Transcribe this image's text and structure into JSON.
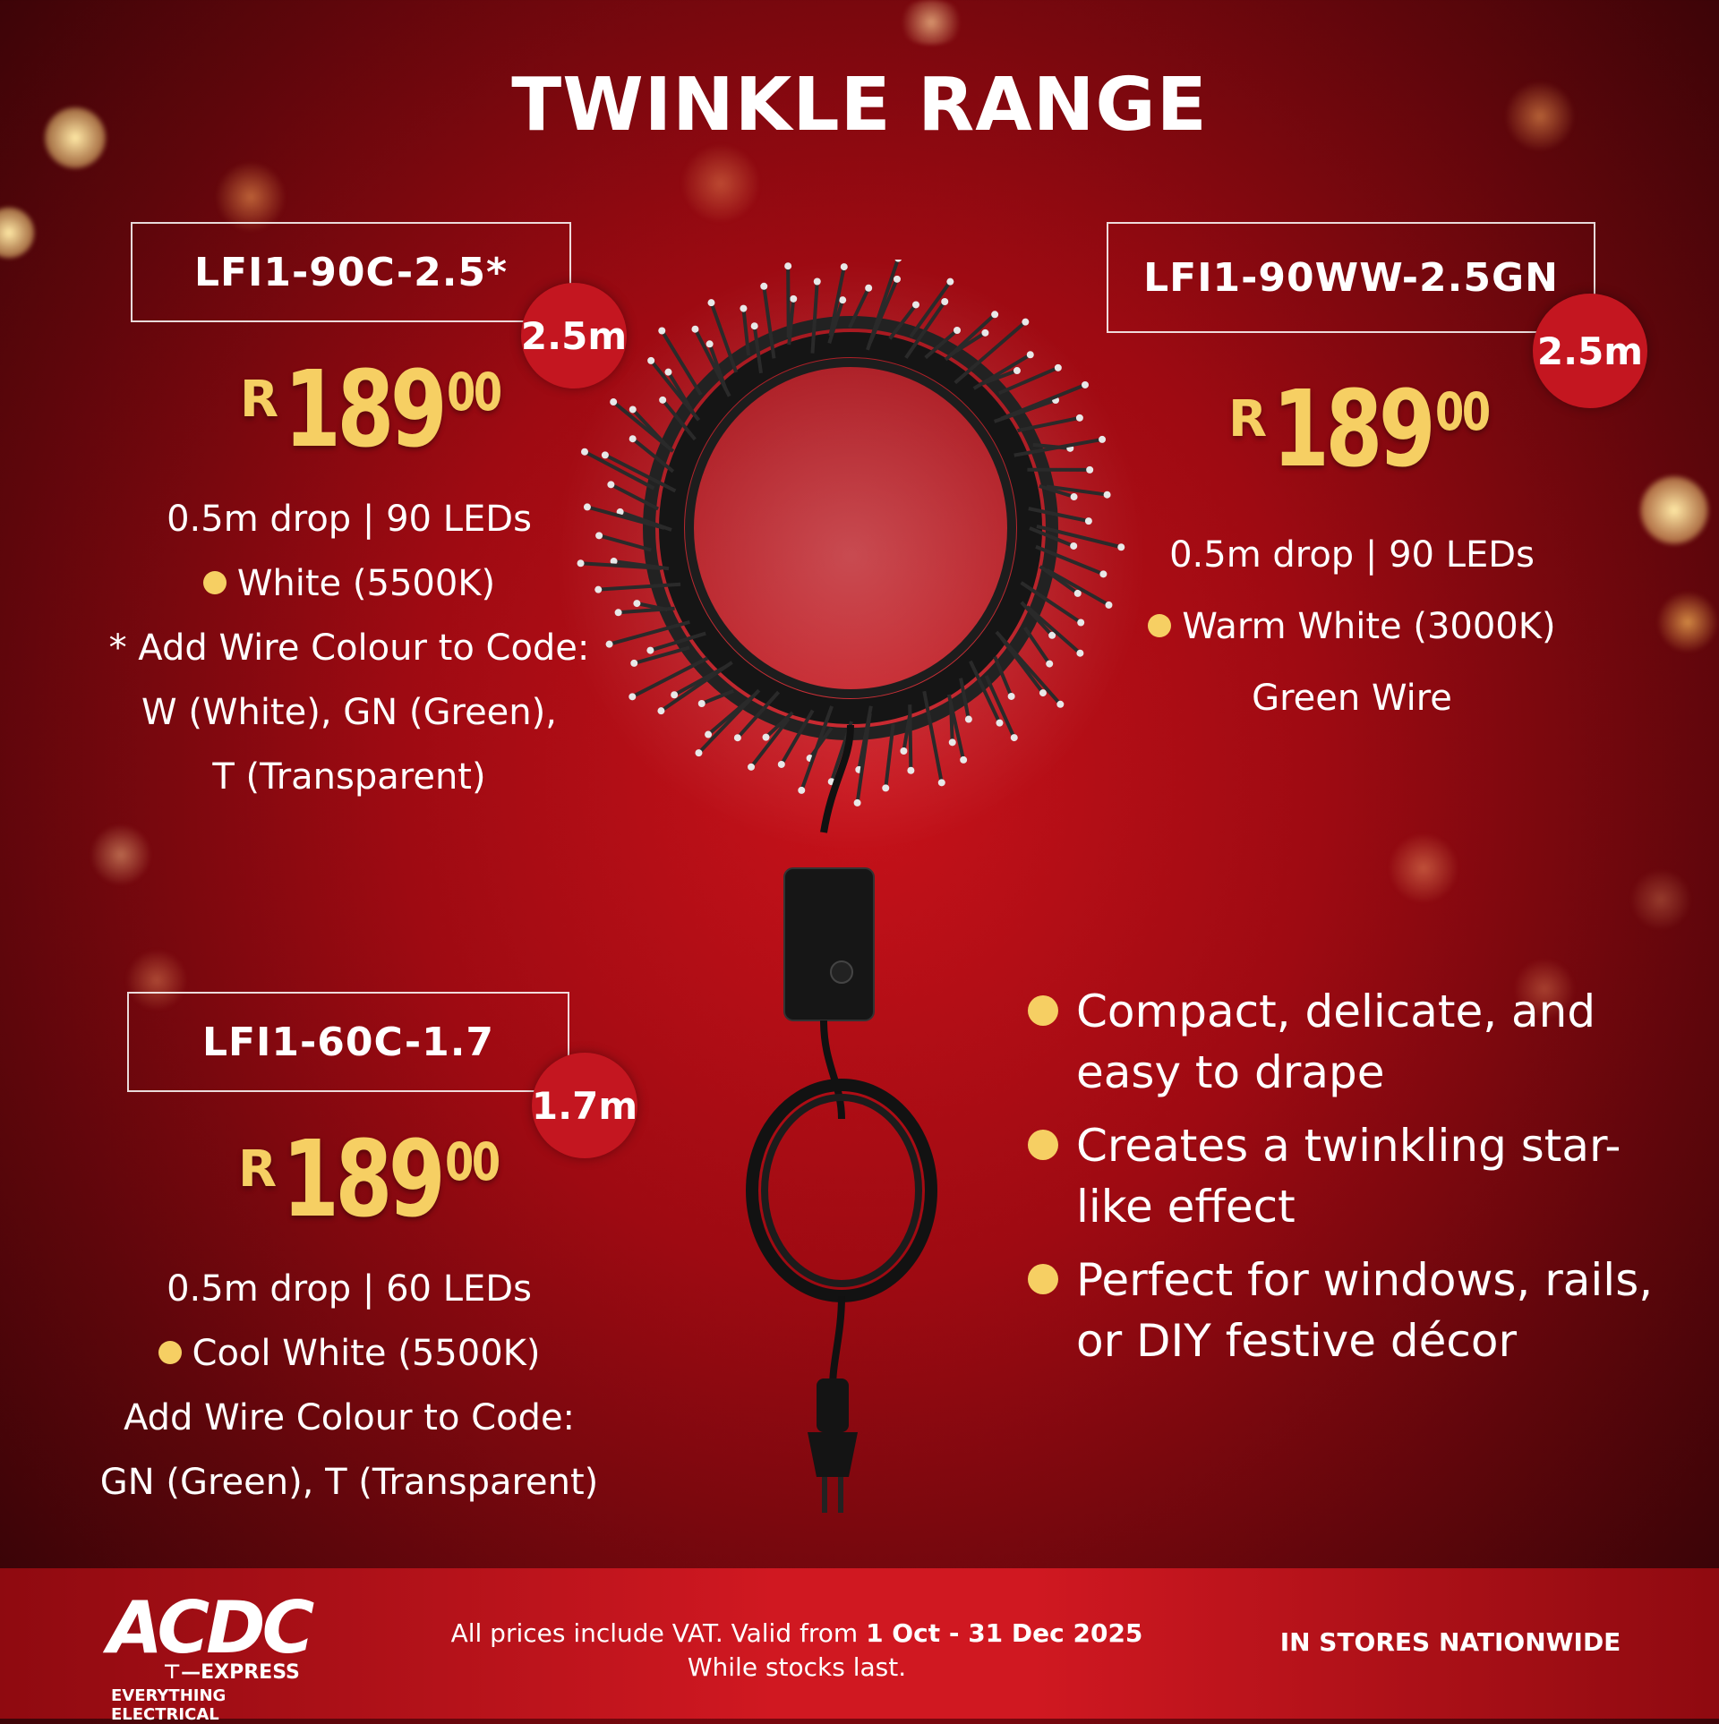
{
  "title": "TWINKLE RANGE",
  "colors": {
    "background": "#9e0a12",
    "price_gold": "#f6cf63",
    "badge_red": "#c41620",
    "footer_red": "#d01821"
  },
  "products": [
    {
      "code": "LFI1-90C-2.5*",
      "length": "2.5m",
      "currency": "R",
      "price_main": "189",
      "price_cents": "00",
      "spec_lines": [
        "0.5m drop | 90 LEDs",
        "White (5500K)",
        "* Add Wire Colour to Code:",
        "W (White), GN (Green),",
        "T (Transparent)"
      ]
    },
    {
      "code": "LFI1-90WW-2.5GN",
      "length": "2.5m",
      "currency": "R",
      "price_main": "189",
      "price_cents": "00",
      "spec_lines": [
        "0.5m drop | 90 LEDs",
        "Warm White (3000K)",
        "Green Wire"
      ]
    },
    {
      "code": "LFI1-60C-1.7",
      "length": "1.7m",
      "currency": "R",
      "price_main": "189",
      "price_cents": "00",
      "spec_lines": [
        "0.5m drop | 60 LEDs",
        "Cool White (5500K)",
        "Add Wire Colour to Code:",
        "GN (Green), T (Transparent)"
      ]
    }
  ],
  "features": [
    "Compact, delicate, and easy to drape",
    "Creates a twinkling star-like effect",
    "Perfect for windows, rails, or DIY festive décor"
  ],
  "product_image": "twinkle-cluster-light-wreath-with-controller-and-plug",
  "footer": {
    "logo_main": "ACDC",
    "logo_sub": "EXPRESS",
    "logo_tagline": "EVERYTHING ELECTRICAL",
    "legal_line1_prefix": "All prices include VAT. Valid from ",
    "legal_dates": "1 Oct - 31 Dec 2025",
    "legal_line2": "While stocks last.",
    "stores": "IN STORES NATIONWIDE"
  }
}
